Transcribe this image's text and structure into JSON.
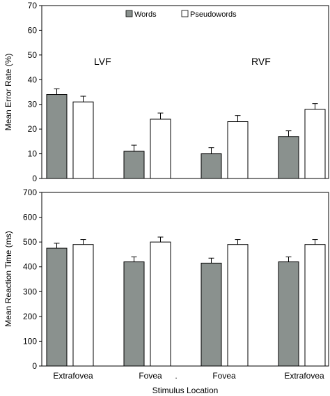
{
  "chart_data": [
    {
      "type": "bar",
      "categories": [
        "Extrafovea",
        "Fovea",
        "Fovea",
        "Extrafovea"
      ],
      "series": [
        {
          "name": "Words",
          "values": [
            34,
            11,
            10,
            17
          ],
          "errors": [
            2.3,
            2.5,
            2.5,
            2.3
          ],
          "color": "#8a918e"
        },
        {
          "name": "Pseudowords",
          "values": [
            31,
            24,
            23,
            28
          ],
          "errors": [
            2.3,
            2.5,
            2.5,
            2.3
          ],
          "color": "#ffffff"
        }
      ],
      "ylabel": "Mean Error Rate (%)",
      "ylim": [
        0,
        70
      ],
      "yticks": [
        0,
        10,
        20,
        30,
        40,
        50,
        60,
        70
      ],
      "annotations": [
        "LVF",
        "RVF"
      ],
      "legend_position": "top-center"
    },
    {
      "type": "bar",
      "categories": [
        "Extrafovea",
        "Fovea",
        "Fovea",
        "Extrafovea"
      ],
      "series": [
        {
          "name": "Words",
          "values": [
            475,
            420,
            415,
            420
          ],
          "errors": [
            20,
            20,
            20,
            20
          ],
          "color": "#8a918e"
        },
        {
          "name": "Pseudowords",
          "values": [
            490,
            500,
            490,
            490
          ],
          "errors": [
            20,
            20,
            20,
            20
          ],
          "color": "#ffffff"
        }
      ],
      "ylabel": "Mean Reaction Time (ms)",
      "ylim": [
        0,
        700
      ],
      "yticks": [
        0,
        100,
        200,
        300,
        400,
        500,
        600,
        700
      ],
      "xlabel": "Stimulus Location",
      "separator_mark": "."
    }
  ]
}
